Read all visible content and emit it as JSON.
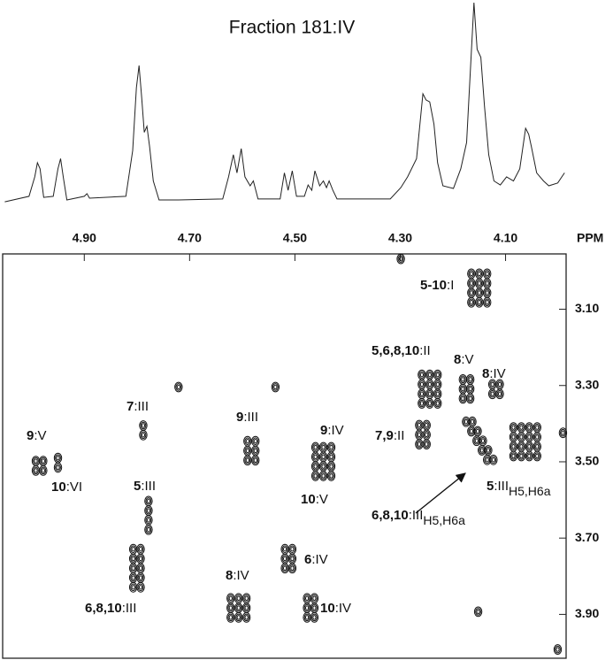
{
  "chart_data": {
    "type": "nmr2d",
    "title": "Fraction 181:IV",
    "x_label": "PPM",
    "xlim": [
      5.055,
      3.985
    ],
    "ylim": [
      2.955,
      4.015
    ],
    "xticks": [
      {
        "value": 4.9,
        "label": "4.90"
      },
      {
        "value": 4.7,
        "label": "4.70"
      },
      {
        "value": 4.5,
        "label": "4.50"
      },
      {
        "value": 4.3,
        "label": "4.30"
      },
      {
        "value": 4.1,
        "label": "4.10"
      }
    ],
    "yticks": [
      {
        "value": 3.1,
        "label": "3.10"
      },
      {
        "value": 3.3,
        "label": "3.30"
      },
      {
        "value": 3.5,
        "label": "3.50"
      },
      {
        "value": 3.7,
        "label": "3.70"
      },
      {
        "value": 3.9,
        "label": "3.90"
      }
    ],
    "spectrum": {
      "x": [
        5.051,
        5.005,
        4.994,
        4.989,
        4.984,
        4.977,
        4.959,
        4.95,
        4.945,
        4.94,
        4.933,
        4.9,
        4.895,
        4.89,
        4.821,
        4.808,
        4.801,
        4.796,
        4.791,
        4.786,
        4.781,
        4.776,
        4.769,
        4.758,
        4.721,
        4.637,
        4.626,
        4.617,
        4.61,
        4.602,
        4.595,
        4.585,
        4.579,
        4.57,
        4.528,
        4.52,
        4.513,
        4.505,
        4.497,
        4.482,
        4.475,
        4.468,
        4.462,
        4.453,
        4.446,
        4.44,
        4.435,
        4.428,
        4.42,
        4.319,
        4.299,
        4.286,
        4.269,
        4.257,
        4.251,
        4.244,
        4.236,
        4.229,
        4.219,
        4.199,
        4.185,
        4.174,
        4.167,
        4.16,
        4.154,
        4.147,
        4.14,
        4.132,
        4.122,
        4.11,
        4.098,
        4.085,
        4.073,
        4.062,
        4.056,
        4.051,
        4.041,
        4.028,
        4.018,
        4.001,
        3.988
      ],
      "values": [
        1.7,
        4.4,
        14,
        21,
        18,
        3.9,
        4.4,
        18,
        23,
        14,
        2.6,
        4.4,
        5.7,
        3.5,
        4.4,
        27,
        58,
        69,
        53,
        36,
        39,
        29,
        12,
        2.6,
        2.6,
        3.1,
        14,
        25,
        16,
        28,
        14,
        9.6,
        12,
        3.1,
        3.1,
        16,
        7.4,
        17,
        4.4,
        4.4,
        10,
        7.4,
        17,
        9.6,
        12,
        8.7,
        12,
        7.4,
        3.1,
        3.1,
        8.7,
        14,
        23,
        55,
        52,
        51,
        40,
        21,
        9.6,
        8.3,
        18,
        31,
        66,
        100,
        77,
        73,
        49,
        25,
        12,
        10,
        14,
        12,
        18,
        38,
        35,
        29,
        16,
        12,
        9.6,
        11,
        16
      ]
    },
    "crosspeaks": {
      "x": [
        4.165,
        4.15,
        4.135,
        4.165,
        4.15,
        4.135,
        4.165,
        4.15,
        4.135,
        4.165,
        4.15,
        4.135,
        4.259,
        4.244,
        4.229,
        4.259,
        4.244,
        4.229,
        4.259,
        4.244,
        4.229,
        4.259,
        4.244,
        4.229,
        4.264,
        4.25,
        4.264,
        4.25,
        4.264,
        4.25,
        4.181,
        4.167,
        4.181,
        4.167,
        4.181,
        4.167,
        4.125,
        4.111,
        4.125,
        4.111,
        4.175,
        4.165,
        4.155,
        4.145,
        4.135,
        4.163,
        4.153,
        4.143,
        4.133,
        4.123,
        4.085,
        4.07,
        4.055,
        4.04,
        4.085,
        4.07,
        4.055,
        4.04,
        4.085,
        4.07,
        4.055,
        4.04,
        4.085,
        4.07,
        4.055,
        4.04,
        4.992,
        4.978,
        4.992,
        4.978,
        4.95,
        4.95,
        4.788,
        4.788,
        4.59,
        4.575,
        4.59,
        4.575,
        4.59,
        4.575,
        4.461,
        4.446,
        4.431,
        4.461,
        4.446,
        4.431,
        4.461,
        4.446,
        4.431,
        4.461,
        4.446,
        4.431,
        4.778,
        4.778,
        4.778,
        4.778,
        4.807,
        4.793,
        4.807,
        4.793,
        4.807,
        4.793,
        4.807,
        4.793,
        4.807,
        4.793,
        4.622,
        4.607,
        4.592,
        4.622,
        4.607,
        4.592,
        4.622,
        4.607,
        4.592,
        4.519,
        4.505,
        4.519,
        4.505,
        4.519,
        4.505,
        4.477,
        4.463,
        4.477,
        4.463,
        4.477,
        4.463,
        4.721,
        4.537,
        4.299,
        3.991,
        4.152,
        4.001
      ],
      "y": [
        3.007,
        3.007,
        3.007,
        3.032,
        3.032,
        3.032,
        3.057,
        3.057,
        3.057,
        3.082,
        3.082,
        3.082,
        3.272,
        3.272,
        3.272,
        3.297,
        3.297,
        3.297,
        3.322,
        3.322,
        3.322,
        3.347,
        3.347,
        3.347,
        3.404,
        3.404,
        3.429,
        3.429,
        3.454,
        3.454,
        3.284,
        3.284,
        3.309,
        3.309,
        3.334,
        3.334,
        3.297,
        3.297,
        3.322,
        3.322,
        3.395,
        3.42,
        3.445,
        3.47,
        3.495,
        3.395,
        3.42,
        3.445,
        3.47,
        3.495,
        3.41,
        3.41,
        3.41,
        3.41,
        3.435,
        3.435,
        3.435,
        3.435,
        3.46,
        3.46,
        3.46,
        3.46,
        3.485,
        3.485,
        3.485,
        3.485,
        3.498,
        3.498,
        3.523,
        3.523,
        3.49,
        3.515,
        3.405,
        3.43,
        3.446,
        3.446,
        3.471,
        3.471,
        3.496,
        3.496,
        3.462,
        3.462,
        3.462,
        3.487,
        3.487,
        3.487,
        3.512,
        3.512,
        3.512,
        3.537,
        3.537,
        3.537,
        3.603,
        3.628,
        3.653,
        3.678,
        3.729,
        3.729,
        3.754,
        3.754,
        3.779,
        3.779,
        3.804,
        3.804,
        3.829,
        3.829,
        3.858,
        3.858,
        3.858,
        3.883,
        3.883,
        3.883,
        3.908,
        3.908,
        3.908,
        3.729,
        3.729,
        3.754,
        3.754,
        3.779,
        3.779,
        3.858,
        3.858,
        3.883,
        3.883,
        3.908,
        3.908,
        3.304,
        3.304,
        2.968,
        3.424,
        3.893,
        3.992
      ]
    },
    "annotations": [
      {
        "bold": "5-10",
        "text": ":I"
      },
      {
        "bold": "5,6,8,10",
        "text": ":II"
      },
      {
        "bold": "8",
        "text": ":V"
      },
      {
        "bold": "8",
        "text": ":IV"
      },
      {
        "bold": "7,9",
        "text": ":II"
      },
      {
        "bold": "9",
        "text": ":V"
      },
      {
        "bold": "10",
        "text": ":VI"
      },
      {
        "bold": "7",
        "text": ":III"
      },
      {
        "bold": "9",
        "text": ":III"
      },
      {
        "bold": "9",
        "text": ":IV"
      },
      {
        "bold": "10",
        "text": ":V"
      },
      {
        "bold": "5",
        "text": ":III"
      },
      {
        "bold": "6",
        "text": ":IV"
      },
      {
        "bold": "8",
        "text": ":IV"
      },
      {
        "bold": "10",
        "text": ":IV"
      },
      {
        "bold": "6,8,10",
        "text": ":III"
      },
      {
        "bold": "6,8,10",
        "text": ":III",
        "sub": "H5,H6a"
      },
      {
        "bold": "5",
        "text": ":III",
        "sub": "H5,H6a"
      }
    ]
  }
}
